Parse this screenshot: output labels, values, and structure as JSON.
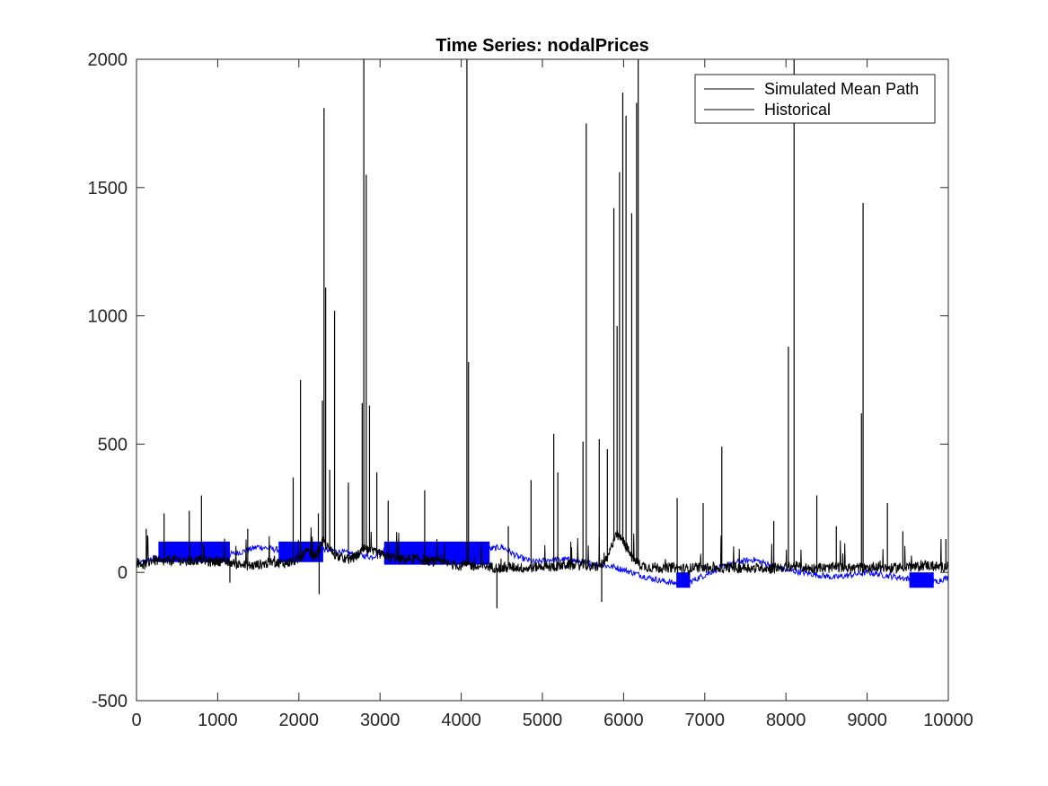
{
  "chart_data": {
    "type": "line",
    "title": "Time Series: nodalPrices",
    "xlabel": "",
    "ylabel": "",
    "xlim": [
      0,
      10000
    ],
    "ylim": [
      -500,
      2000
    ],
    "xticks": [
      0,
      1000,
      2000,
      3000,
      4000,
      5000,
      6000,
      7000,
      8000,
      9000,
      10000
    ],
    "yticks": [
      -500,
      0,
      500,
      1000,
      1500,
      2000
    ],
    "xtick_labels": [
      "0",
      "1000",
      "2000",
      "3000",
      "4000",
      "5000",
      "6000",
      "7000",
      "8000",
      "9000",
      "10000"
    ],
    "ytick_labels": [
      "-500",
      "0",
      "500",
      "1000",
      "1500",
      "2000"
    ],
    "grid": false,
    "legend_location": "top-right",
    "series": [
      {
        "name": "Simulated Mean Path",
        "color": "#0000ff",
        "x": [
          0,
          250,
          500,
          750,
          1000,
          1150,
          1300,
          1500,
          1700,
          1900,
          2100,
          2300,
          2500,
          2700,
          2900,
          3100,
          3300,
          3500,
          3700,
          3900,
          4100,
          4350,
          4500,
          4700,
          4900,
          5100,
          5300,
          5500,
          5700,
          5900,
          6100,
          6300,
          6500,
          6700,
          6800,
          7000,
          7200,
          7400,
          7600,
          7800,
          8000,
          8200,
          8400,
          8600,
          8800,
          9000,
          9200,
          9400,
          9600,
          9800,
          10000
        ],
        "y": [
          30,
          60,
          75,
          85,
          90,
          70,
          80,
          100,
          90,
          80,
          110,
          90,
          80,
          70,
          60,
          100,
          80,
          70,
          75,
          70,
          80,
          90,
          100,
          60,
          40,
          50,
          50,
          40,
          30,
          20,
          0,
          -20,
          -35,
          -45,
          -40,
          -10,
          20,
          40,
          50,
          30,
          10,
          0,
          -10,
          -20,
          -10,
          0,
          -10,
          -20,
          -30,
          -40,
          -20
        ]
      },
      {
        "name": "Historical",
        "color": "#000000",
        "x": [
          0,
          100,
          200,
          300,
          400,
          500,
          600,
          700,
          800,
          900,
          1000,
          1100,
          1200,
          1300,
          1400,
          1500,
          1600,
          1700,
          1800,
          1900,
          2000,
          2100,
          2200,
          2300,
          2400,
          2500,
          2600,
          2700,
          2800,
          2900,
          3000,
          3100,
          3200,
          3300,
          3400,
          3500,
          3600,
          3700,
          3800,
          3900,
          4000,
          4100,
          4200,
          4300,
          4400,
          4500,
          4600,
          4700,
          4800,
          4900,
          5000,
          5100,
          5200,
          5300,
          5400,
          5500,
          5600,
          5700,
          5800,
          5900,
          6000,
          6100,
          6200,
          6300,
          6400,
          6500,
          6600,
          6700,
          6800,
          6900,
          7000,
          7100,
          7200,
          7300,
          7400,
          7500,
          7600,
          7700,
          7800,
          7900,
          8000,
          8100,
          8200,
          8300,
          8400,
          8500,
          8600,
          8700,
          8800,
          8900,
          9000,
          9100,
          9200,
          9300,
          9400,
          9500,
          9600,
          9700,
          9800,
          9900,
          10000
        ],
        "y": [
          40,
          30,
          50,
          40,
          45,
          50,
          40,
          45,
          50,
          40,
          45,
          40,
          35,
          30,
          25,
          30,
          35,
          40,
          35,
          40,
          50,
          80,
          60,
          120,
          80,
          60,
          50,
          60,
          90,
          80,
          70,
          60,
          55,
          50,
          55,
          50,
          45,
          40,
          35,
          30,
          25,
          30,
          20,
          25,
          20,
          15,
          20,
          20,
          15,
          20,
          25,
          20,
          25,
          30,
          25,
          30,
          20,
          25,
          50,
          150,
          120,
          60,
          30,
          20,
          20,
          15,
          20,
          15,
          15,
          20,
          15,
          20,
          15,
          20,
          15,
          20,
          15,
          20,
          15,
          20,
          20,
          25,
          20,
          15,
          20,
          15,
          20,
          20,
          15,
          20,
          15,
          25,
          20,
          15,
          20,
          25,
          20,
          30,
          25,
          20,
          25
        ]
      }
    ],
    "historical_spikes": [
      {
        "x": 120,
        "y": 170
      },
      {
        "x": 340,
        "y": 230
      },
      {
        "x": 650,
        "y": 240
      },
      {
        "x": 800,
        "y": 300
      },
      {
        "x": 1370,
        "y": 170
      },
      {
        "x": 1930,
        "y": 370
      },
      {
        "x": 2020,
        "y": 750
      },
      {
        "x": 2240,
        "y": 230
      },
      {
        "x": 2290,
        "y": 670
      },
      {
        "x": 2310,
        "y": 1810
      },
      {
        "x": 2330,
        "y": 1110
      },
      {
        "x": 2380,
        "y": 400
      },
      {
        "x": 2440,
        "y": 1020
      },
      {
        "x": 2610,
        "y": 350
      },
      {
        "x": 2780,
        "y": 660
      },
      {
        "x": 2800,
        "y": 2000
      },
      {
        "x": 2830,
        "y": 1550
      },
      {
        "x": 2870,
        "y": 650
      },
      {
        "x": 2960,
        "y": 390
      },
      {
        "x": 3100,
        "y": 280
      },
      {
        "x": 3550,
        "y": 320
      },
      {
        "x": 4070,
        "y": 2000
      },
      {
        "x": 4090,
        "y": 820
      },
      {
        "x": 4580,
        "y": 180
      },
      {
        "x": 4860,
        "y": 360
      },
      {
        "x": 5140,
        "y": 540
      },
      {
        "x": 5190,
        "y": 390
      },
      {
        "x": 5500,
        "y": 510
      },
      {
        "x": 5540,
        "y": 1750
      },
      {
        "x": 5700,
        "y": 520
      },
      {
        "x": 5800,
        "y": 480
      },
      {
        "x": 5880,
        "y": 1420
      },
      {
        "x": 5920,
        "y": 960
      },
      {
        "x": 5950,
        "y": 1560
      },
      {
        "x": 5990,
        "y": 1870
      },
      {
        "x": 6030,
        "y": 1780
      },
      {
        "x": 6100,
        "y": 1400
      },
      {
        "x": 6160,
        "y": 1830
      },
      {
        "x": 6180,
        "y": 2000
      },
      {
        "x": 6660,
        "y": 290
      },
      {
        "x": 6980,
        "y": 270
      },
      {
        "x": 7210,
        "y": 490
      },
      {
        "x": 7850,
        "y": 200
      },
      {
        "x": 8030,
        "y": 880
      },
      {
        "x": 8100,
        "y": 2000
      },
      {
        "x": 8380,
        "y": 300
      },
      {
        "x": 8620,
        "y": 180
      },
      {
        "x": 8930,
        "y": 620
      },
      {
        "x": 8950,
        "y": 1440
      },
      {
        "x": 9250,
        "y": 270
      },
      {
        "x": 9440,
        "y": 160
      },
      {
        "x": 9970,
        "y": 130
      }
    ],
    "historical_dips": [
      {
        "x": 2250,
        "y": -85
      },
      {
        "x": 4440,
        "y": -140
      },
      {
        "x": 5730,
        "y": -115
      },
      {
        "x": 1150,
        "y": -40
      }
    ],
    "simulated_bands": [
      {
        "x_start": 270,
        "x_end": 1150,
        "y_low": 40,
        "y_high": 120
      },
      {
        "x_start": 1750,
        "x_end": 2300,
        "y_low": 40,
        "y_high": 120
      },
      {
        "x_start": 3050,
        "x_end": 4350,
        "y_low": 30,
        "y_high": 120
      },
      {
        "x_start": 6650,
        "x_end": 6820,
        "y_low": -60,
        "y_high": 0
      },
      {
        "x_start": 9520,
        "x_end": 9820,
        "y_low": -60,
        "y_high": 0
      }
    ]
  }
}
